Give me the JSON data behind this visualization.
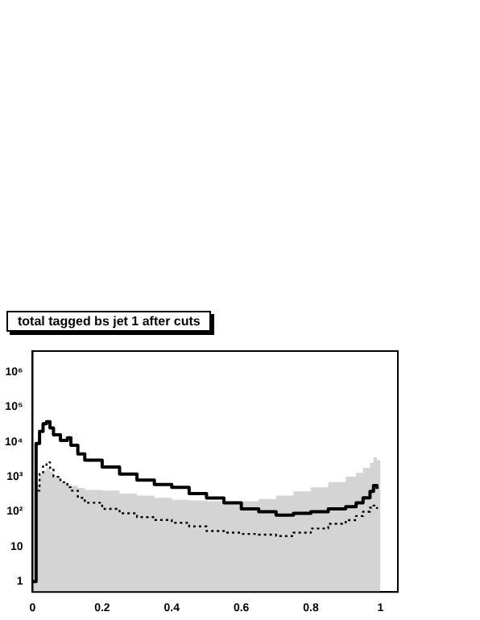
{
  "chart_data": {
    "type": "step",
    "title": "total tagged bs jet 1 after cuts",
    "log": "y",
    "grid": false,
    "legend": false,
    "marker": "none",
    "x": [
      0,
      0.01,
      0.02,
      0.03,
      0.04,
      0.05,
      0.06,
      0.08,
      0.1,
      0.11,
      0.13,
      0.15,
      0.2,
      0.25,
      0.3,
      0.35,
      0.4,
      0.45,
      0.5,
      0.55,
      0.6,
      0.65,
      0.7,
      0.75,
      0.8,
      0.85,
      0.9,
      0.93,
      0.95,
      0.97,
      0.98,
      0.99,
      1.0
    ],
    "xlim": [
      0,
      1.05
    ],
    "xticks": [
      0,
      0.2,
      0.4,
      0.6,
      0.8,
      1
    ],
    "ylim": [
      0.5,
      4000000
    ],
    "yticks": [
      1,
      10,
      {
        "value": 100,
        "label": "10²"
      },
      {
        "value": 1000,
        "label": "10³"
      },
      {
        "value": 10000,
        "label": "10⁴"
      },
      {
        "value": 100000,
        "label": "10⁵"
      },
      {
        "value": 1000000,
        "label": "10⁶"
      }
    ],
    "series": [
      {
        "type": "area",
        "color": "#d4d4d4",
        "values": [
          1,
          600,
          1200,
          1500,
          1800,
          1400,
          1000,
          700,
          600,
          550,
          480,
          420,
          400,
          330,
          290,
          250,
          220,
          210,
          200,
          200,
          200,
          230,
          290,
          380,
          500,
          700,
          1000,
          1300,
          1800,
          2500,
          3600,
          3000,
          20
        ]
      },
      {
        "color": "#000000",
        "values": [
          1,
          9000,
          20000,
          33000,
          38000,
          25000,
          16000,
          11000,
          13000,
          8000,
          4500,
          3000,
          1900,
          1200,
          800,
          600,
          500,
          330,
          245,
          180,
          120,
          100,
          80,
          90,
          100,
          120,
          140,
          180,
          250,
          380,
          560,
          450,
          null
        ]
      },
      {
        "color": "#000000",
        "line_style": "dotted",
        "values": [
          1,
          400,
          1200,
          2000,
          2600,
          1800,
          1000,
          700,
          500,
          400,
          250,
          180,
          120,
          90,
          70,
          58,
          48,
          38,
          28,
          25,
          23,
          22,
          20,
          25,
          33,
          45,
          57,
          75,
          100,
          130,
          150,
          120,
          null
        ]
      }
    ]
  }
}
